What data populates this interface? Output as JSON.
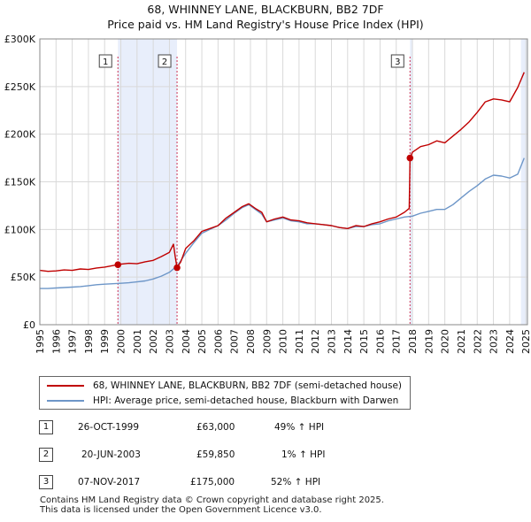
{
  "header": {
    "title": "68, WHINNEY LANE, BLACKBURN, BB2 7DF",
    "subtitle": "Price paid vs. HM Land Registry's House Price Index (HPI)"
  },
  "chart_data": {
    "type": "line",
    "title": "68, WHINNEY LANE, BLACKBURN, BB2 7DF",
    "subtitle": "Price paid vs. HM Land Registry's House Price Index (HPI)",
    "xlim": [
      1995,
      2025.1
    ],
    "ylim": [
      0,
      300000
    ],
    "x_ticks": [
      1995,
      1996,
      1997,
      1998,
      1999,
      2000,
      2001,
      2002,
      2003,
      2004,
      2005,
      2006,
      2007,
      2008,
      2009,
      2010,
      2011,
      2012,
      2013,
      2014,
      2015,
      2016,
      2017,
      2018,
      2019,
      2020,
      2021,
      2022,
      2023,
      2024,
      2025
    ],
    "y_ticks": [
      {
        "value": 0,
        "label": "£0"
      },
      {
        "value": 50000,
        "label": "£50K"
      },
      {
        "value": 100000,
        "label": "£100K"
      },
      {
        "value": 150000,
        "label": "£150K"
      },
      {
        "value": 200000,
        "label": "£200K"
      },
      {
        "value": 250000,
        "label": "£250K"
      },
      {
        "value": 300000,
        "label": "£300K"
      }
    ],
    "grid": true,
    "colors": {
      "property": "#c00000",
      "hpi": "#6d96c8",
      "shade": "#e8eefb",
      "marker_line": "#cc3355"
    },
    "shaded_ranges": [
      [
        1999.82,
        2003.47
      ],
      [
        2017.85,
        2018.0
      ],
      [
        2024.7,
        2025.1
      ]
    ],
    "markers": [
      {
        "id": "1",
        "x": 1999.82,
        "y": 63000
      },
      {
        "id": "2",
        "x": 2003.47,
        "y": 59850
      },
      {
        "id": "3",
        "x": 2017.85,
        "y": 175000
      }
    ],
    "series": [
      {
        "name": "68, WHINNEY LANE, BLACKBURN, BB2 7DF (semi-detached house)",
        "color": "#c00000",
        "x": [
          1995,
          1995.5,
          1996,
          1996.5,
          1997,
          1997.5,
          1998,
          1998.5,
          1999,
          1999.5,
          1999.82,
          2000,
          2000.5,
          2001,
          2001.5,
          2002,
          2002.5,
          2003,
          2003.25,
          2003.35,
          2003.47,
          2003.7,
          2004,
          2004.5,
          2005,
          2005.5,
          2006,
          2006.5,
          2007,
          2007.5,
          2007.9,
          2008.3,
          2008.7,
          2009,
          2009.5,
          2010,
          2010.5,
          2011,
          2011.5,
          2012,
          2012.5,
          2013,
          2013.5,
          2014,
          2014.5,
          2015,
          2015.5,
          2016,
          2016.5,
          2017,
          2017.5,
          2017.8,
          2017.85,
          2018,
          2018.5,
          2019,
          2019.5,
          2020,
          2020.5,
          2021,
          2021.5,
          2022,
          2022.5,
          2023,
          2023.5,
          2024,
          2024.5,
          2024.9
        ],
        "values": [
          57000,
          56000,
          56500,
          57500,
          57000,
          58500,
          58000,
          59500,
          60500,
          62000,
          63000,
          63500,
          64500,
          64000,
          66000,
          67500,
          71500,
          76000,
          84500,
          72000,
          59850,
          66000,
          80000,
          88000,
          98000,
          101000,
          104000,
          112000,
          118000,
          124000,
          127000,
          122000,
          118000,
          108000,
          111000,
          113000,
          110000,
          109000,
          107000,
          106000,
          105000,
          104000,
          102000,
          101000,
          104000,
          103000,
          106000,
          108000,
          111000,
          113000,
          118000,
          122000,
          175000,
          181000,
          187000,
          189000,
          193000,
          191000,
          198000,
          205000,
          213000,
          223000,
          234000,
          237000,
          236000,
          234000,
          249000,
          265000
        ]
      },
      {
        "name": "HPI: Average price, semi-detached house, Blackburn with Darwen",
        "color": "#6d96c8",
        "x": [
          1995,
          1995.5,
          1996,
          1996.5,
          1997,
          1997.5,
          1998,
          1998.5,
          1999,
          1999.5,
          2000,
          2000.5,
          2001,
          2001.5,
          2002,
          2002.5,
          2003,
          2003.5,
          2004,
          2004.5,
          2005,
          2005.5,
          2006,
          2006.5,
          2007,
          2007.5,
          2007.9,
          2008.3,
          2008.7,
          2009,
          2009.5,
          2010,
          2010.5,
          2011,
          2011.5,
          2012,
          2012.5,
          2013,
          2013.5,
          2014,
          2014.5,
          2015,
          2015.5,
          2016,
          2016.5,
          2017,
          2017.5,
          2018,
          2018.5,
          2019,
          2019.5,
          2020,
          2020.5,
          2021,
          2021.5,
          2022,
          2022.5,
          2023,
          2023.5,
          2024,
          2024.5,
          2024.9
        ],
        "values": [
          38000,
          38000,
          38500,
          39000,
          39500,
          40000,
          41000,
          42000,
          42500,
          43000,
          43500,
          44000,
          45000,
          46000,
          48000,
          51000,
          55000,
          62000,
          75000,
          86000,
          96000,
          100000,
          104000,
          110000,
          117000,
          123000,
          126000,
          121000,
          116000,
          108000,
          110000,
          112000,
          109000,
          108000,
          106000,
          106000,
          105000,
          104000,
          102000,
          101000,
          103000,
          103000,
          105000,
          106000,
          109000,
          111000,
          113000,
          114000,
          117000,
          119000,
          121000,
          121000,
          126000,
          133000,
          140000,
          146000,
          153000,
          157000,
          156000,
          154000,
          158000,
          175000
        ]
      }
    ]
  },
  "legend": {
    "property": "68, WHINNEY LANE, BLACKBURN, BB2 7DF (semi-detached house)",
    "hpi": "HPI: Average price, semi-detached house, Blackburn with Darwen"
  },
  "transactions": [
    {
      "num": "1",
      "date": "26-OCT-1999",
      "price": "£63,000",
      "hpi": "49% ↑ HPI"
    },
    {
      "num": "2",
      "date": "20-JUN-2003",
      "price": "£59,850",
      "hpi": "1% ↑ HPI"
    },
    {
      "num": "3",
      "date": "07-NOV-2017",
      "price": "£175,000",
      "hpi": "52% ↑ HPI"
    }
  ],
  "footer": {
    "line1": "Contains HM Land Registry data © Crown copyright and database right 2025.",
    "line2": "This data is licensed under the Open Government Licence v3.0."
  }
}
